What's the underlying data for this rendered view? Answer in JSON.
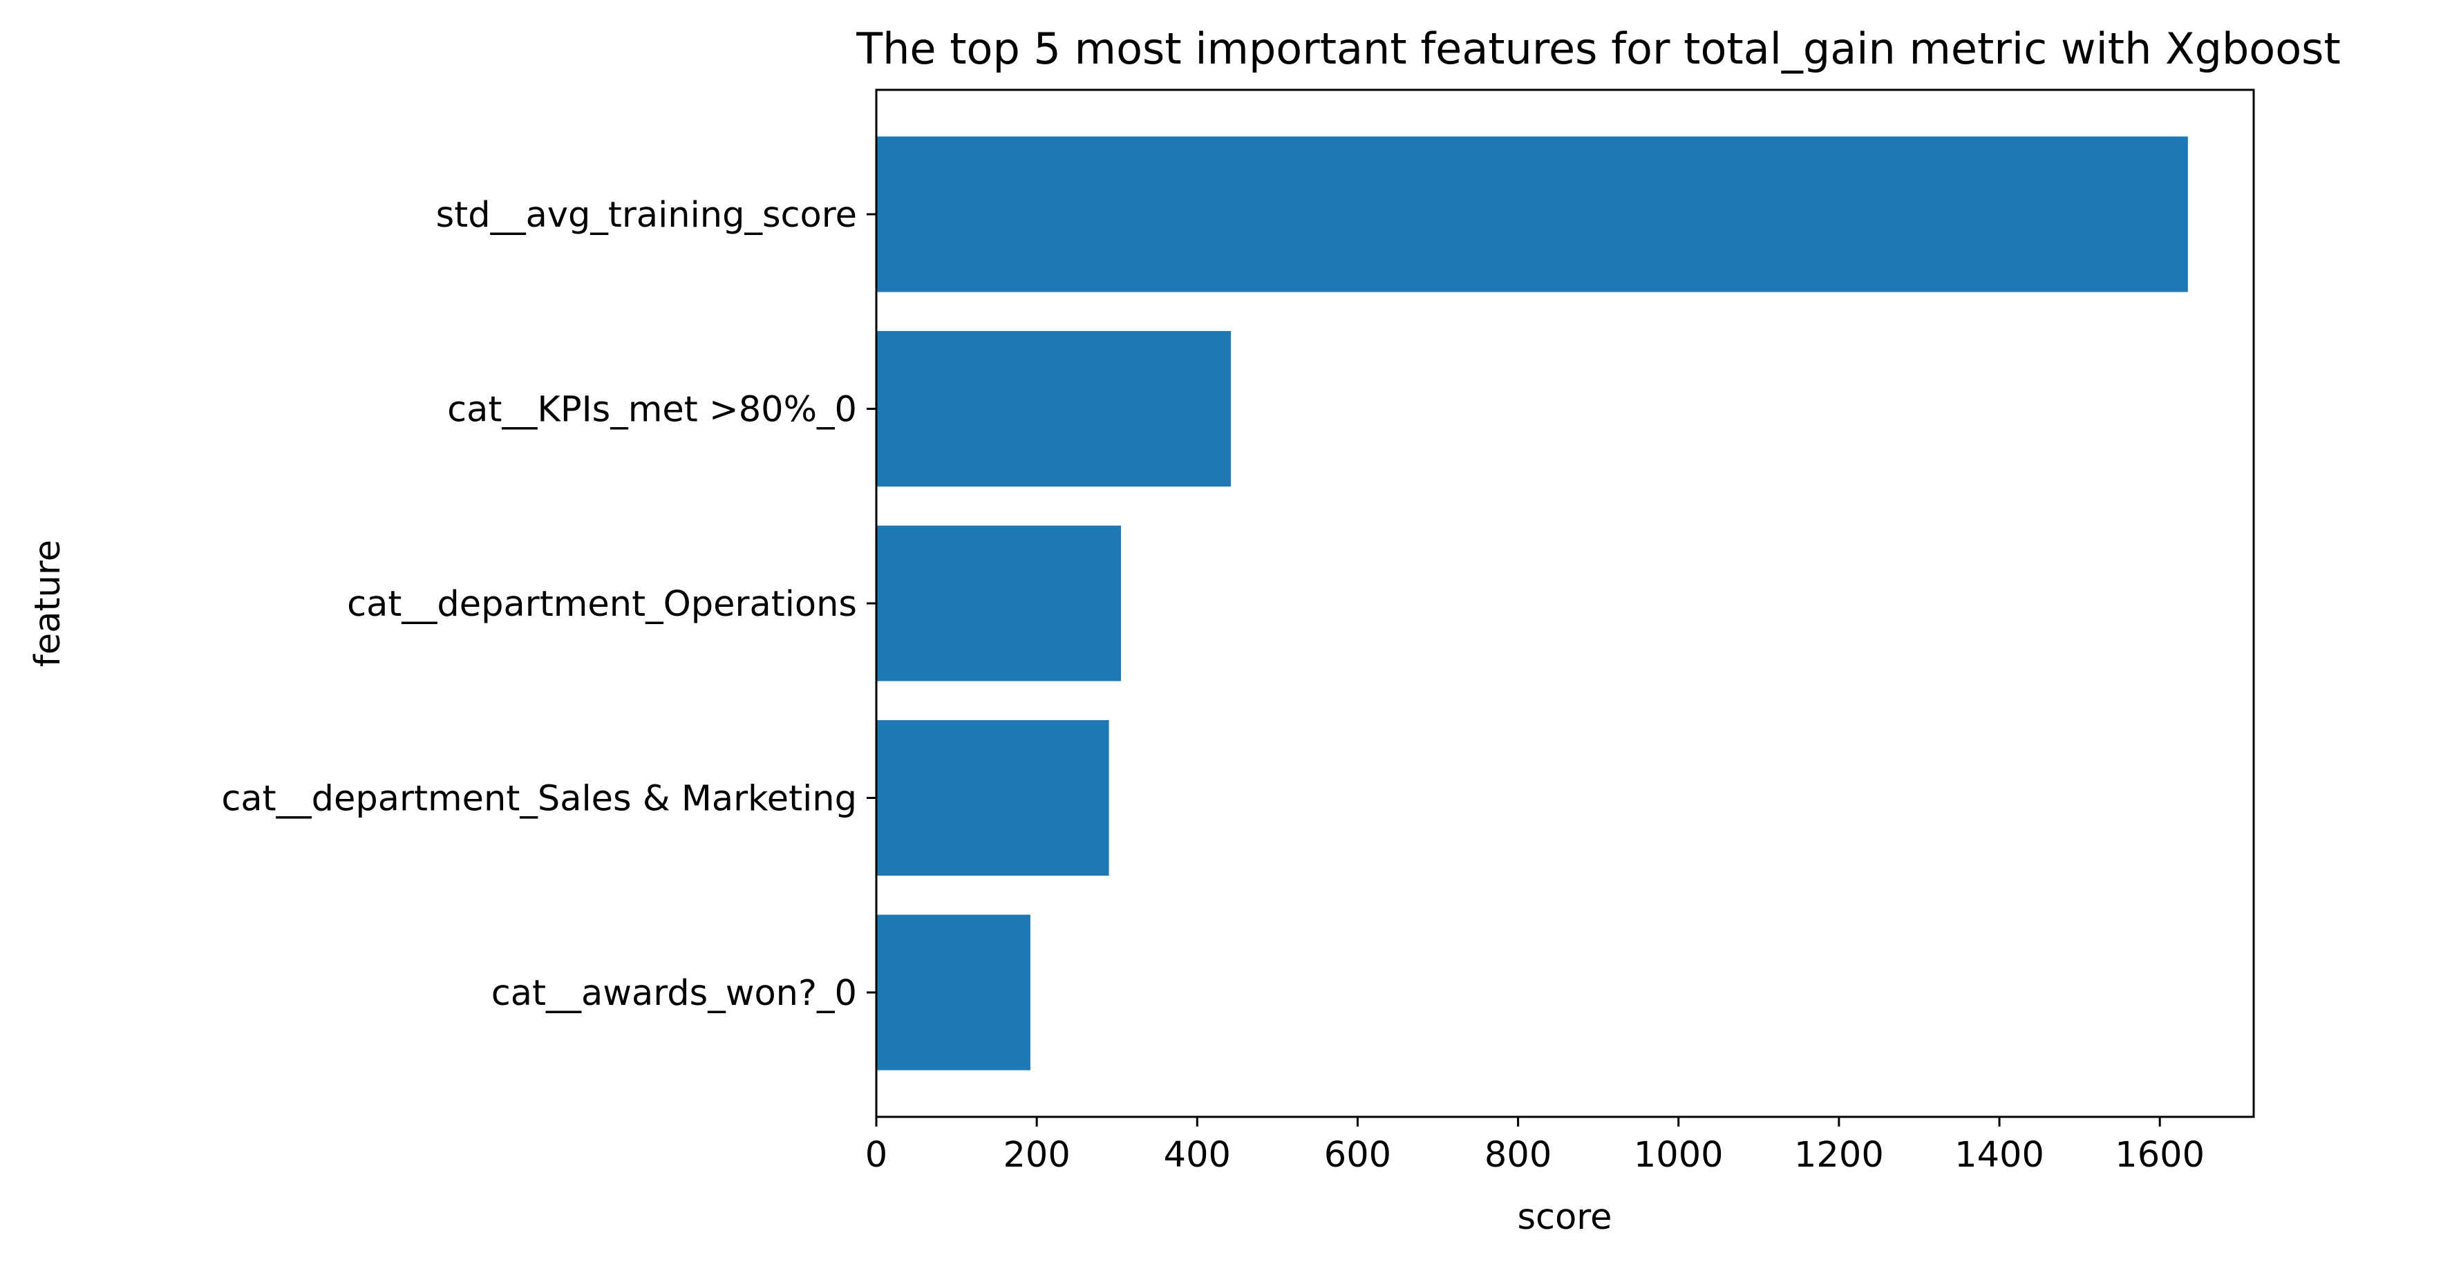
{
  "chart_data": {
    "type": "bar",
    "orientation": "horizontal",
    "title": "The top 5 most important features for total_gain metric with Xgboost",
    "xlabel": "score",
    "ylabel": "feature",
    "categories": [
      "std__avg_training_score",
      "cat__KPIs_met >80%_0",
      "cat__department_Operations",
      "cat__department_Sales & Marketing",
      "cat__awards_won?_0"
    ],
    "values": [
      1635,
      442,
      305,
      290,
      192
    ],
    "xlim": [
      0,
      1717
    ],
    "xticks": [
      0,
      200,
      400,
      600,
      800,
      1000,
      1200,
      1400,
      1600
    ],
    "bar_color": "#1f77b4",
    "grid": false,
    "legend": "none"
  }
}
